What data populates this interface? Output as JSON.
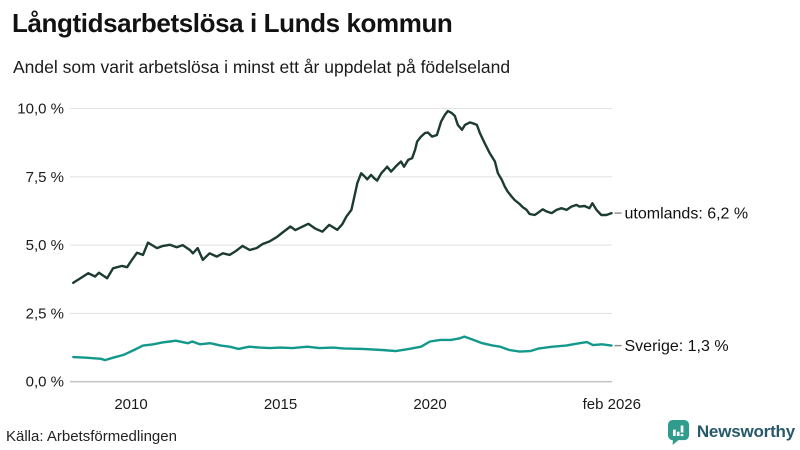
{
  "header": {
    "title": "Långtidsarbetslösa i Lunds kommun",
    "subtitle": "Andel som varit arbetslösa i minst ett år uppdelat på födelseland"
  },
  "footer": {
    "source": "Källa: Arbetsförmedlingen",
    "brand": "Newsworthy",
    "brand_icon": "newsworthy-bar-chart-bubble-icon"
  },
  "colors": {
    "utomlands_line": "#1c3b33",
    "sverige_line": "#12998b",
    "grid_line": "#e4e4e4",
    "axis_line": "#c6c6c6",
    "text": "#1a1a1a",
    "connector": "#8a8a8a",
    "brand_icon_bg": "#2f9c8e",
    "brand_text": "#27596a"
  },
  "chart_data": {
    "type": "line",
    "title": "Långtidsarbetslösa i Lunds kommun",
    "subtitle": "Andel som varit arbetslösa i minst ett år uppdelat på födelseland",
    "unit": "%",
    "x_range": [
      2008,
      2026.3
    ],
    "y_range": [
      0,
      10
    ],
    "grid": "horizontal",
    "legend": "end-of-line-labels",
    "y_ticks": [
      {
        "value": 10,
        "label": "10,0 %"
      },
      {
        "value": 7.5,
        "label": "7,5 %"
      },
      {
        "value": 5,
        "label": "5,0 %"
      },
      {
        "value": 2.5,
        "label": "2,5 %"
      },
      {
        "value": 0,
        "label": "0,0 %"
      }
    ],
    "x_ticks": [
      {
        "value": 2010,
        "label": "2010"
      },
      {
        "value": 2015,
        "label": "2015"
      },
      {
        "value": 2020,
        "label": "2020"
      },
      {
        "value": 2026.08,
        "label": "feb 2026"
      }
    ],
    "series": [
      {
        "name": "utomlands",
        "end_label": "utomlands: 6,2 %",
        "end_value": 6.2,
        "color": "#1c3b33",
        "points": [
          [
            2008.07,
            3.62
          ],
          [
            2008.3,
            3.78
          ],
          [
            2008.57,
            3.97
          ],
          [
            2008.8,
            3.85
          ],
          [
            2008.93,
            3.99
          ],
          [
            2009.2,
            3.79
          ],
          [
            2009.4,
            4.15
          ],
          [
            2009.7,
            4.24
          ],
          [
            2009.87,
            4.19
          ],
          [
            2010.03,
            4.46
          ],
          [
            2010.2,
            4.72
          ],
          [
            2010.4,
            4.64
          ],
          [
            2010.57,
            5.09
          ],
          [
            2010.87,
            4.89
          ],
          [
            2011.07,
            4.97
          ],
          [
            2011.3,
            5.01
          ],
          [
            2011.53,
            4.92
          ],
          [
            2011.73,
            5.0
          ],
          [
            2011.97,
            4.82
          ],
          [
            2012.07,
            4.7
          ],
          [
            2012.23,
            4.89
          ],
          [
            2012.4,
            4.46
          ],
          [
            2012.63,
            4.7
          ],
          [
            2012.87,
            4.58
          ],
          [
            2013.07,
            4.7
          ],
          [
            2013.3,
            4.64
          ],
          [
            2013.53,
            4.8
          ],
          [
            2013.73,
            4.97
          ],
          [
            2013.97,
            4.82
          ],
          [
            2014.2,
            4.89
          ],
          [
            2014.4,
            5.04
          ],
          [
            2014.63,
            5.13
          ],
          [
            2014.87,
            5.29
          ],
          [
            2015.07,
            5.46
          ],
          [
            2015.33,
            5.68
          ],
          [
            2015.5,
            5.55
          ],
          [
            2015.67,
            5.64
          ],
          [
            2015.93,
            5.78
          ],
          [
            2016.17,
            5.6
          ],
          [
            2016.4,
            5.49
          ],
          [
            2016.63,
            5.74
          ],
          [
            2016.9,
            5.56
          ],
          [
            2017.07,
            5.77
          ],
          [
            2017.2,
            6.04
          ],
          [
            2017.37,
            6.29
          ],
          [
            2017.47,
            6.78
          ],
          [
            2017.57,
            7.27
          ],
          [
            2017.7,
            7.63
          ],
          [
            2017.8,
            7.53
          ],
          [
            2017.9,
            7.41
          ],
          [
            2018.03,
            7.57
          ],
          [
            2018.13,
            7.45
          ],
          [
            2018.23,
            7.36
          ],
          [
            2018.37,
            7.63
          ],
          [
            2018.47,
            7.75
          ],
          [
            2018.57,
            7.87
          ],
          [
            2018.7,
            7.69
          ],
          [
            2018.8,
            7.81
          ],
          [
            2018.9,
            7.93
          ],
          [
            2019.03,
            8.06
          ],
          [
            2019.13,
            7.87
          ],
          [
            2019.27,
            8.12
          ],
          [
            2019.4,
            8.18
          ],
          [
            2019.5,
            8.49
          ],
          [
            2019.57,
            8.79
          ],
          [
            2019.7,
            8.97
          ],
          [
            2019.83,
            9.1
          ],
          [
            2019.93,
            9.12
          ],
          [
            2020.07,
            8.97
          ],
          [
            2020.23,
            9.03
          ],
          [
            2020.37,
            9.52
          ],
          [
            2020.5,
            9.77
          ],
          [
            2020.6,
            9.91
          ],
          [
            2020.73,
            9.83
          ],
          [
            2020.83,
            9.73
          ],
          [
            2020.93,
            9.4
          ],
          [
            2021.07,
            9.22
          ],
          [
            2021.17,
            9.4
          ],
          [
            2021.33,
            9.49
          ],
          [
            2021.43,
            9.46
          ],
          [
            2021.57,
            9.4
          ],
          [
            2021.67,
            9.1
          ],
          [
            2021.83,
            8.73
          ],
          [
            2022.0,
            8.36
          ],
          [
            2022.17,
            8.06
          ],
          [
            2022.27,
            7.63
          ],
          [
            2022.4,
            7.39
          ],
          [
            2022.5,
            7.14
          ],
          [
            2022.6,
            6.96
          ],
          [
            2022.73,
            6.78
          ],
          [
            2022.83,
            6.65
          ],
          [
            2023.0,
            6.5
          ],
          [
            2023.1,
            6.39
          ],
          [
            2023.23,
            6.29
          ],
          [
            2023.33,
            6.14
          ],
          [
            2023.5,
            6.1
          ],
          [
            2023.6,
            6.17
          ],
          [
            2023.77,
            6.31
          ],
          [
            2023.9,
            6.23
          ],
          [
            2024.07,
            6.17
          ],
          [
            2024.23,
            6.29
          ],
          [
            2024.4,
            6.35
          ],
          [
            2024.57,
            6.29
          ],
          [
            2024.73,
            6.41
          ],
          [
            2024.9,
            6.47
          ],
          [
            2025.0,
            6.41
          ],
          [
            2025.17,
            6.43
          ],
          [
            2025.33,
            6.35
          ],
          [
            2025.43,
            6.53
          ],
          [
            2025.57,
            6.29
          ],
          [
            2025.73,
            6.1
          ],
          [
            2025.9,
            6.1
          ],
          [
            2026.07,
            6.17
          ]
        ]
      },
      {
        "name": "sverige",
        "end_label": "Sverige: 1,3 %",
        "end_value": 1.3,
        "color": "#12998b",
        "points": [
          [
            2008.07,
            0.9
          ],
          [
            2008.5,
            0.88
          ],
          [
            2009.0,
            0.84
          ],
          [
            2009.13,
            0.79
          ],
          [
            2009.4,
            0.88
          ],
          [
            2009.75,
            0.98
          ],
          [
            2010.1,
            1.16
          ],
          [
            2010.4,
            1.32
          ],
          [
            2010.75,
            1.37
          ],
          [
            2011.05,
            1.44
          ],
          [
            2011.3,
            1.47
          ],
          [
            2011.5,
            1.5
          ],
          [
            2011.9,
            1.41
          ],
          [
            2012.05,
            1.47
          ],
          [
            2012.3,
            1.37
          ],
          [
            2012.65,
            1.41
          ],
          [
            2013.0,
            1.32
          ],
          [
            2013.3,
            1.28
          ],
          [
            2013.6,
            1.2
          ],
          [
            2013.95,
            1.28
          ],
          [
            2014.3,
            1.25
          ],
          [
            2014.65,
            1.23
          ],
          [
            2015.0,
            1.25
          ],
          [
            2015.4,
            1.23
          ],
          [
            2015.9,
            1.28
          ],
          [
            2016.3,
            1.23
          ],
          [
            2016.75,
            1.25
          ],
          [
            2017.1,
            1.22
          ],
          [
            2017.75,
            1.2
          ],
          [
            2018.4,
            1.16
          ],
          [
            2018.85,
            1.12
          ],
          [
            2019.3,
            1.2
          ],
          [
            2019.7,
            1.28
          ],
          [
            2020.0,
            1.47
          ],
          [
            2020.35,
            1.53
          ],
          [
            2020.7,
            1.53
          ],
          [
            2021.0,
            1.59
          ],
          [
            2021.15,
            1.65
          ],
          [
            2021.45,
            1.53
          ],
          [
            2021.75,
            1.41
          ],
          [
            2022.1,
            1.32
          ],
          [
            2022.35,
            1.28
          ],
          [
            2022.65,
            1.16
          ],
          [
            2023.0,
            1.1
          ],
          [
            2023.35,
            1.12
          ],
          [
            2023.65,
            1.22
          ],
          [
            2024.1,
            1.28
          ],
          [
            2024.55,
            1.32
          ],
          [
            2025.0,
            1.41
          ],
          [
            2025.25,
            1.45
          ],
          [
            2025.45,
            1.34
          ],
          [
            2025.75,
            1.37
          ],
          [
            2026.07,
            1.32
          ]
        ]
      }
    ]
  }
}
